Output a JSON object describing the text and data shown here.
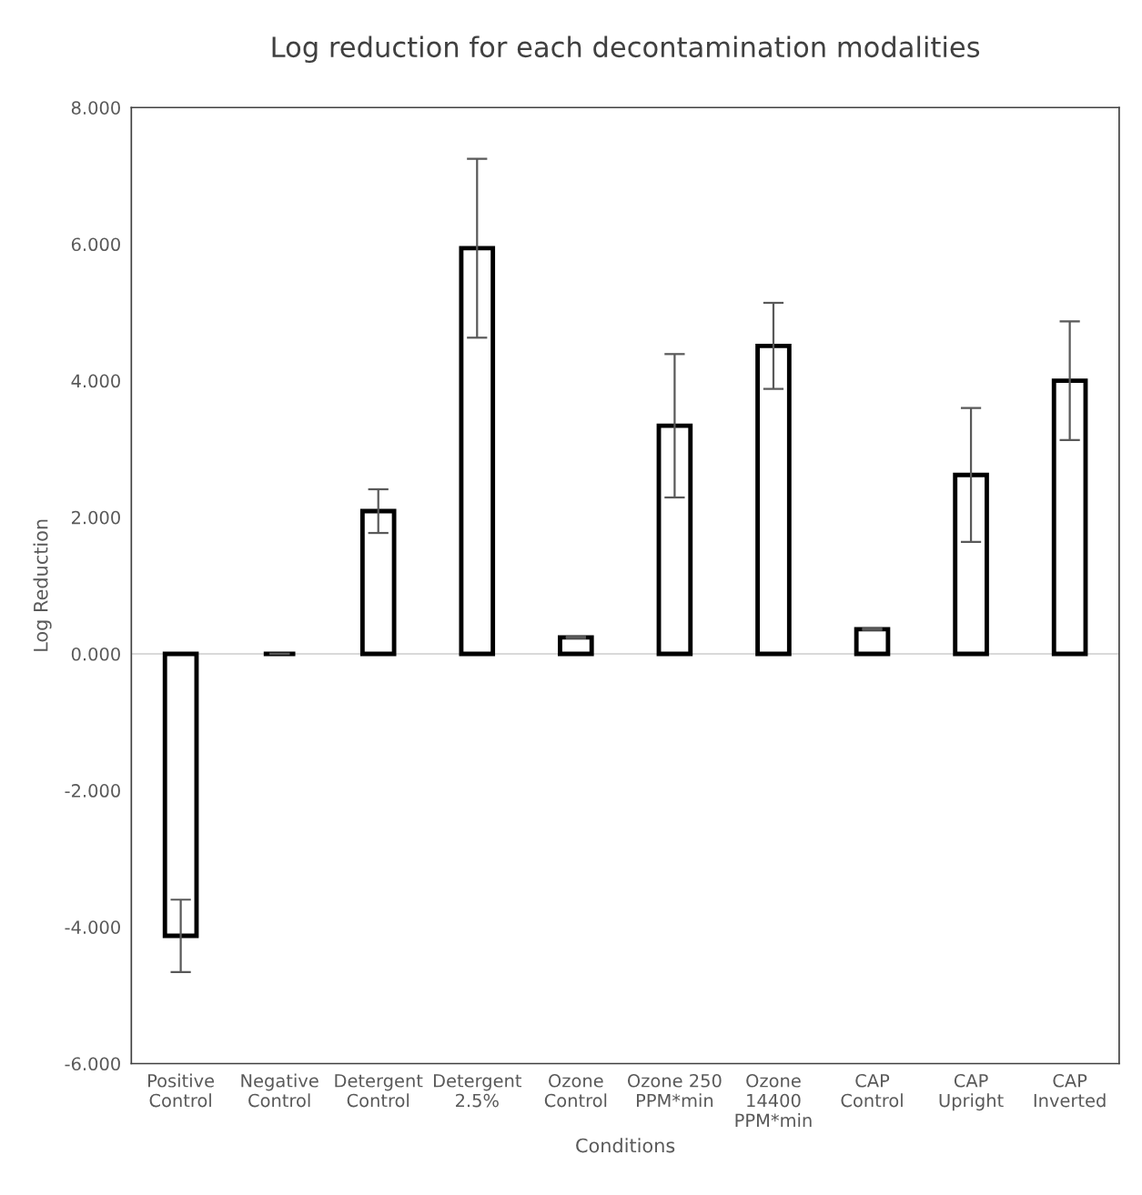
{
  "chart_data": {
    "type": "bar",
    "title": "Log reduction for each decontamination modalities",
    "xlabel": "Conditions",
    "ylabel": "Log Reduction",
    "categories": [
      "Positive\nControl",
      "Negative\nControl",
      "Detergent\nControl",
      "Detergent\n2.5%",
      "Ozone\nControl",
      "Ozone 250\nPPM*min",
      "Ozone\n14400\nPPM*min",
      "CAP\nControl",
      "CAP\nUpright",
      "CAP\nInverted"
    ],
    "values": [
      -4.13,
      0.0,
      2.09,
      5.94,
      0.24,
      3.34,
      4.51,
      0.36,
      2.62,
      4.0
    ],
    "errors": [
      0.53,
      0.0,
      0.32,
      1.31,
      0.01,
      1.05,
      0.63,
      0.01,
      0.98,
      0.87
    ],
    "colors": [
      "#ffffff",
      "#000000",
      "#ffffff",
      "#ffffff",
      "#ffffff",
      "#ffffff",
      "#ffffff",
      "#ffffff",
      "#ffffff",
      "#ffffff"
    ],
    "ylim": [
      -6,
      8
    ],
    "yticks": [
      {
        "value": -6,
        "label": "-6.000"
      },
      {
        "value": -4,
        "label": "-4.000"
      },
      {
        "value": -2,
        "label": "-2.000"
      },
      {
        "value": 0,
        "label": "0.000"
      },
      {
        "value": 2,
        "label": "2.000"
      },
      {
        "value": 4,
        "label": "4.000"
      },
      {
        "value": 6,
        "label": "6.000"
      },
      {
        "value": 8,
        "label": "8.000"
      }
    ],
    "ref_lines": [
      {
        "axis": "y",
        "value": 0,
        "color": "#d9d9d9"
      }
    ],
    "grid": false,
    "legend": false
  }
}
